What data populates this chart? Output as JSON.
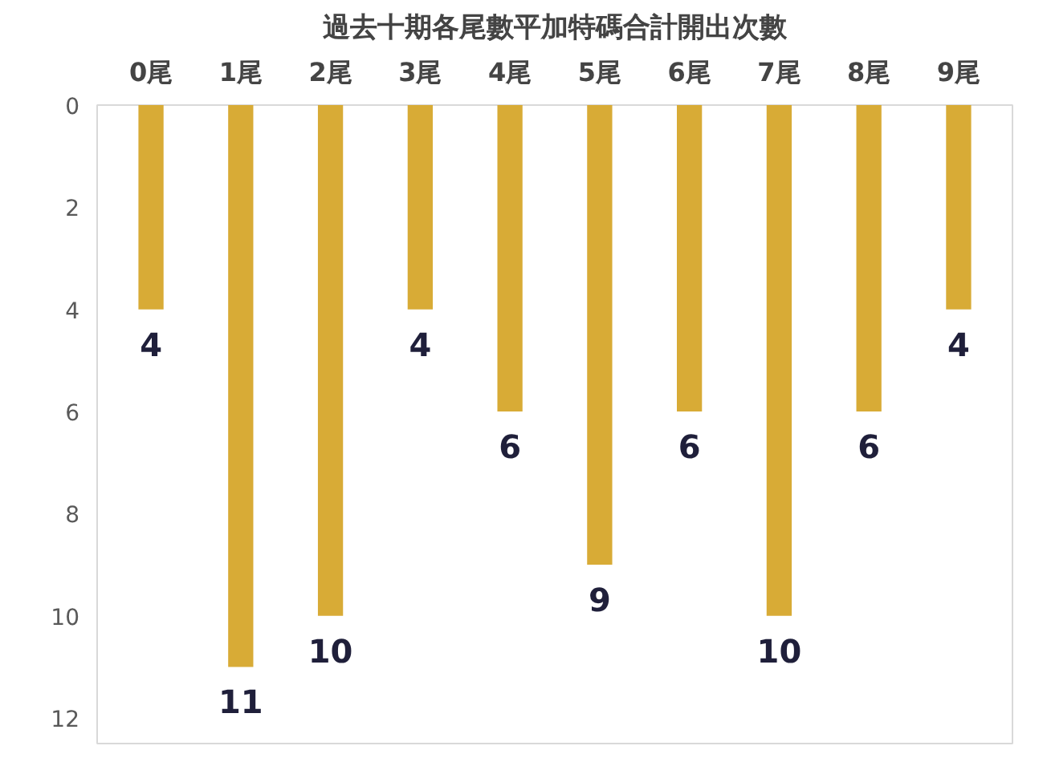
{
  "chart_data": {
    "type": "bar",
    "title": "過去十期各尾數平加特碼合計開出次數",
    "categories": [
      "0尾",
      "1尾",
      "2尾",
      "3尾",
      "4尾",
      "5尾",
      "6尾",
      "7尾",
      "8尾",
      "9尾"
    ],
    "values": [
      4,
      11,
      10,
      4,
      6,
      9,
      6,
      10,
      6,
      4
    ],
    "color": "#d8ab36",
    "ylim": [
      12.5,
      0
    ],
    "yticks": [
      0,
      2,
      4,
      6,
      8,
      10,
      12
    ],
    "grid": false,
    "data_labels": true
  }
}
